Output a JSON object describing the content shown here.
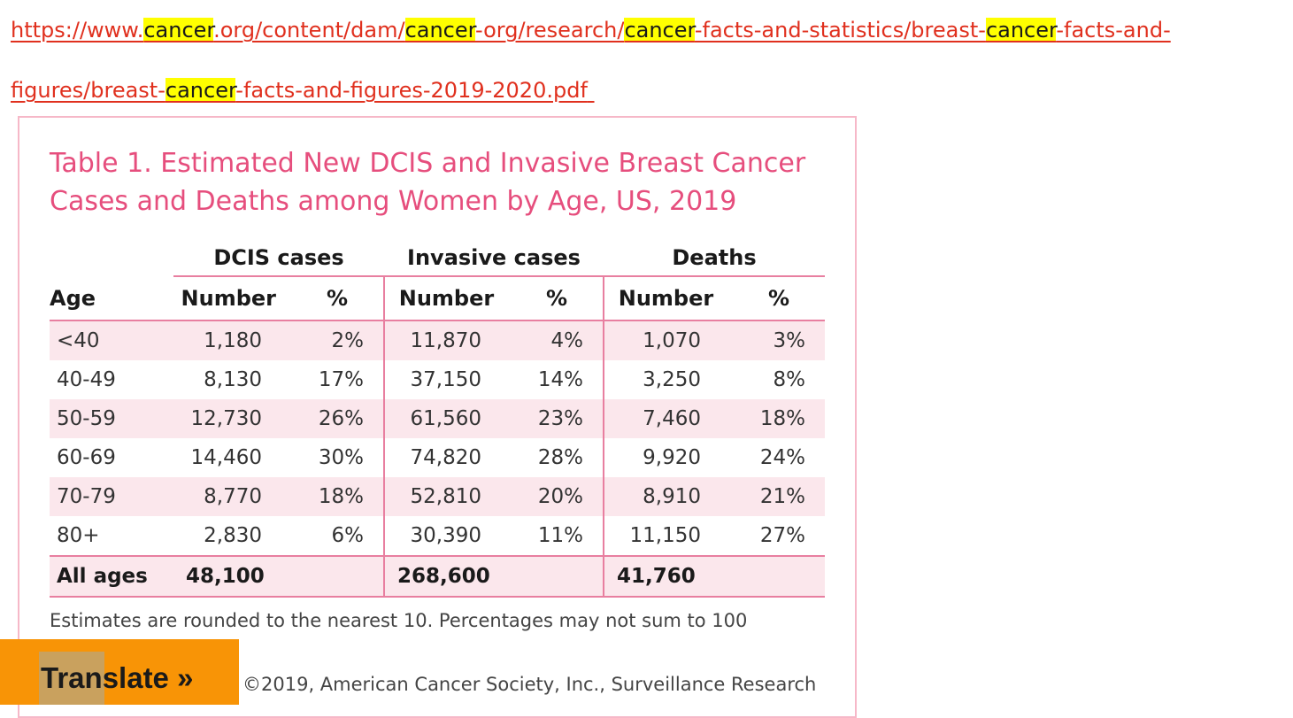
{
  "link": {
    "parts": [
      "https://www.",
      "cancer",
      ".org/content/dam/",
      "cancer",
      "-org/research/",
      "cancer",
      "-facts-and-statistics/breast-",
      "cancer",
      "-facts-and-figures/breast-",
      "cancer",
      "-facts-and-figures-2019-2020.pdf"
    ]
  },
  "table": {
    "title": "Table 1. Estimated New DCIS and Invasive Breast Cancer Cases and Deaths among Women by Age, US, 2019",
    "group_headers": [
      "DCIS cases",
      "Invasive cases",
      "Deaths"
    ],
    "sub_headers": [
      "Age",
      "Number",
      "%",
      "Number",
      "%",
      "Number",
      "%"
    ],
    "rows": [
      [
        "<40",
        "1,180",
        "2%",
        "11,870",
        "4%",
        "1,070",
        "3%"
      ],
      [
        "40-49",
        "8,130",
        "17%",
        "37,150",
        "14%",
        "3,250",
        "8%"
      ],
      [
        "50-59",
        "12,730",
        "26%",
        "61,560",
        "23%",
        "7,460",
        "18%"
      ],
      [
        "60-69",
        "14,460",
        "30%",
        "74,820",
        "28%",
        "9,920",
        "24%"
      ],
      [
        "70-79",
        "8,770",
        "18%",
        "52,810",
        "20%",
        "8,910",
        "21%"
      ],
      [
        "80+",
        "2,830",
        "6%",
        "30,390",
        "11%",
        "11,150",
        "27%"
      ]
    ],
    "total": [
      "All ages",
      "48,100",
      "268,600",
      "41,760"
    ],
    "note": "Estimates are rounded to the nearest 10. Percentages may not sum to 100",
    "copyright": "©2019, American Cancer Society, Inc., Surveillance Research"
  },
  "translate": {
    "label": "Translate »"
  },
  "colors": {
    "link": "#e0301e",
    "highlight": "#ffff00",
    "title": "#e64e7d",
    "rule": "#e87fa0",
    "shade": "#fbe7ec",
    "translate_bg": "#f89406"
  }
}
